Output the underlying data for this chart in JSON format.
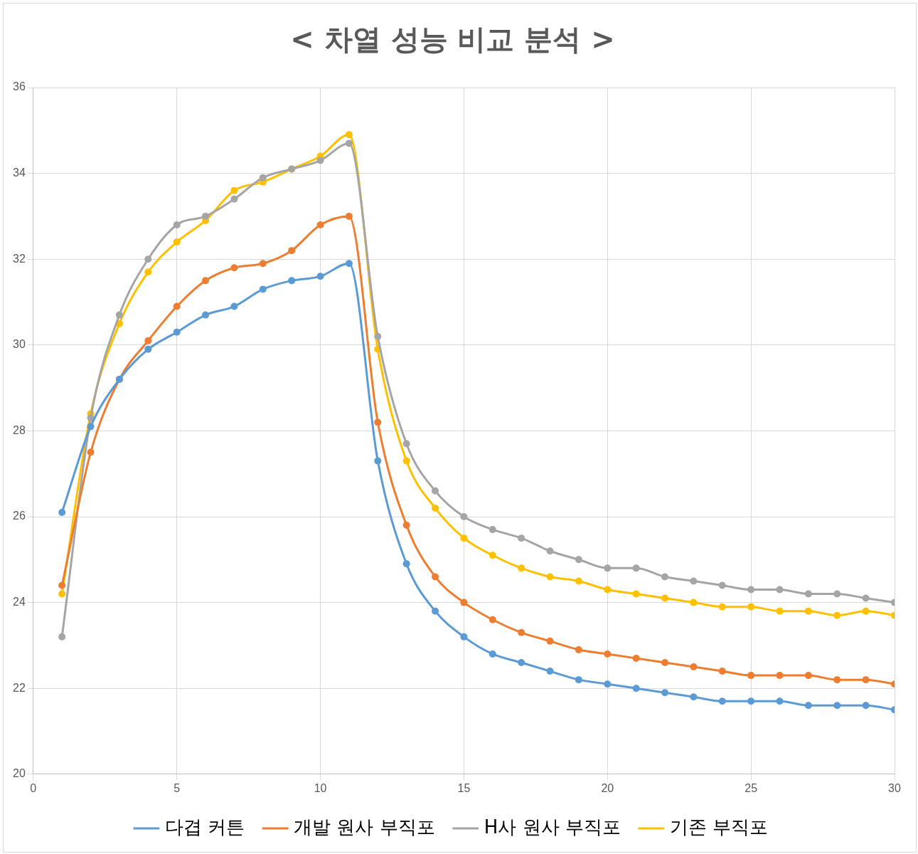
{
  "chart_data": {
    "type": "line",
    "title": "< 차열 성능 비교 분석 >",
    "x": [
      1,
      2,
      3,
      4,
      5,
      6,
      7,
      8,
      9,
      10,
      11,
      12,
      13,
      14,
      15,
      16,
      17,
      18,
      19,
      20,
      21,
      22,
      23,
      24,
      25,
      26,
      27,
      28,
      29,
      30
    ],
    "series": [
      {
        "name": "다겹 커튼",
        "color": "#5b9bd5",
        "values": [
          26.1,
          28.1,
          29.2,
          29.9,
          30.3,
          30.7,
          30.9,
          31.3,
          31.5,
          31.6,
          31.9,
          27.3,
          24.9,
          23.8,
          23.2,
          22.8,
          22.6,
          22.4,
          22.2,
          22.1,
          22.0,
          21.9,
          21.8,
          21.7,
          21.7,
          21.7,
          21.6,
          21.6,
          21.6,
          21.5
        ]
      },
      {
        "name": "개발 원사 부직포",
        "color": "#ed7d31",
        "values": [
          24.4,
          27.5,
          29.2,
          30.1,
          30.9,
          31.5,
          31.8,
          31.9,
          32.2,
          32.8,
          33.0,
          28.2,
          25.8,
          24.6,
          24.0,
          23.6,
          23.3,
          23.1,
          22.9,
          22.8,
          22.7,
          22.6,
          22.5,
          22.4,
          22.3,
          22.3,
          22.3,
          22.2,
          22.2,
          22.1
        ]
      },
      {
        "name": "H사 원사 부직포",
        "color": "#a5a5a5",
        "values": [
          23.2,
          28.3,
          30.7,
          32.0,
          32.8,
          33.0,
          33.4,
          33.9,
          34.1,
          34.3,
          34.7,
          30.2,
          27.7,
          26.6,
          26.0,
          25.7,
          25.5,
          25.2,
          25.0,
          24.8,
          24.8,
          24.6,
          24.5,
          24.4,
          24.3,
          24.3,
          24.2,
          24.2,
          24.1,
          24.0
        ]
      },
      {
        "name": "기존 부직포",
        "color": "#ffc000",
        "values": [
          24.2,
          28.4,
          30.5,
          31.7,
          32.4,
          32.9,
          33.6,
          33.8,
          34.1,
          34.4,
          34.9,
          29.9,
          27.3,
          26.2,
          25.5,
          25.1,
          24.8,
          24.6,
          24.5,
          24.3,
          24.2,
          24.1,
          24.0,
          23.9,
          23.9,
          23.8,
          23.8,
          23.7,
          23.8,
          23.7
        ]
      }
    ],
    "xlim": [
      0,
      30
    ],
    "xticks": [
      0,
      5,
      10,
      15,
      20,
      25,
      30
    ],
    "ylim": [
      20,
      36
    ],
    "yticks": [
      20,
      22,
      24,
      26,
      28,
      30,
      32,
      34,
      36
    ],
    "grid": true,
    "legend": "bottom",
    "marker": "circle",
    "line_style": "solid"
  }
}
